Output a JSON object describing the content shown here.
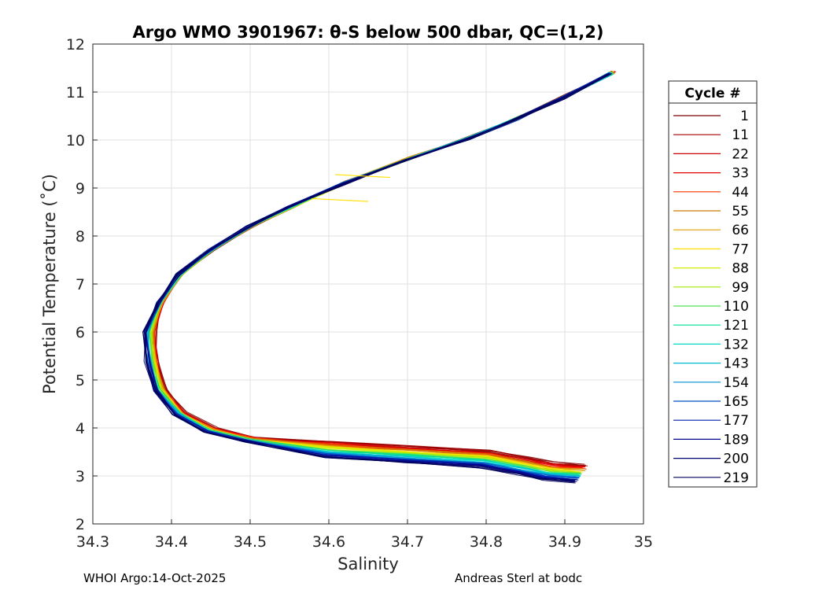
{
  "chart_data": {
    "type": "line",
    "title": "Argo WMO 3901967: θ-S below 500 dbar,  QC=(1,2)",
    "xlabel": "Salinity",
    "ylabel": "Potential Temperature (˚C)",
    "xlim": [
      34.3,
      35
    ],
    "ylim": [
      2,
      12
    ],
    "xticks": [
      "34.3",
      "34.4",
      "34.5",
      "34.6",
      "34.7",
      "34.8",
      "34.9",
      "35"
    ],
    "yticks": [
      "2",
      "3",
      "4",
      "5",
      "6",
      "7",
      "8",
      "9",
      "10",
      "11",
      "12"
    ],
    "grid": true,
    "legend": {
      "title": "Cycle #",
      "placement": "right-outside",
      "entries": [
        "1",
        "11",
        "22",
        "33",
        "44",
        "55",
        "66",
        "77",
        "88",
        "99",
        "110",
        "121",
        "132",
        "143",
        "154",
        "165",
        "177",
        "189",
        "200",
        "219"
      ],
      "colors": [
        "#7f0000",
        "#a50000",
        "#cc0000",
        "#e60000",
        "#ff3300",
        "#cc7a00",
        "#e0a000",
        "#ffe000",
        "#d4ee00",
        "#a0e800",
        "#55e055",
        "#00e090",
        "#00d8c8",
        "#00b8d8",
        "#0090d0",
        "#0050c8",
        "#0020a8",
        "#000090",
        "#00006e",
        "#00005a"
      ]
    },
    "series_path": {
      "description_free": true,
      "s": [
        34.96,
        34.9,
        34.84,
        34.78,
        34.7,
        34.62,
        34.55,
        34.5,
        34.45,
        34.41,
        34.385,
        34.372,
        34.375,
        34.385,
        34.41,
        34.45,
        34.5,
        34.6,
        34.7,
        34.8,
        34.85,
        34.88,
        34.92
      ],
      "t": [
        11.4,
        10.9,
        10.45,
        10.05,
        9.6,
        9.1,
        8.6,
        8.2,
        7.7,
        7.2,
        6.6,
        6.0,
        5.4,
        4.8,
        4.3,
        3.95,
        3.75,
        3.55,
        3.45,
        3.35,
        3.2,
        3.1,
        3.05
      ]
    },
    "outliers": [
      {
        "s": [
          34.608,
          34.678
        ],
        "t": [
          9.28,
          9.22
        ],
        "color": "#ffe000"
      },
      {
        "s": [
          34.578,
          34.65
        ],
        "t": [
          8.78,
          8.72
        ],
        "color": "#ffe000"
      }
    ]
  },
  "footer": {
    "left": "WHOI Argo:14-Oct-2025",
    "right": "Andreas Sterl at bodc"
  }
}
